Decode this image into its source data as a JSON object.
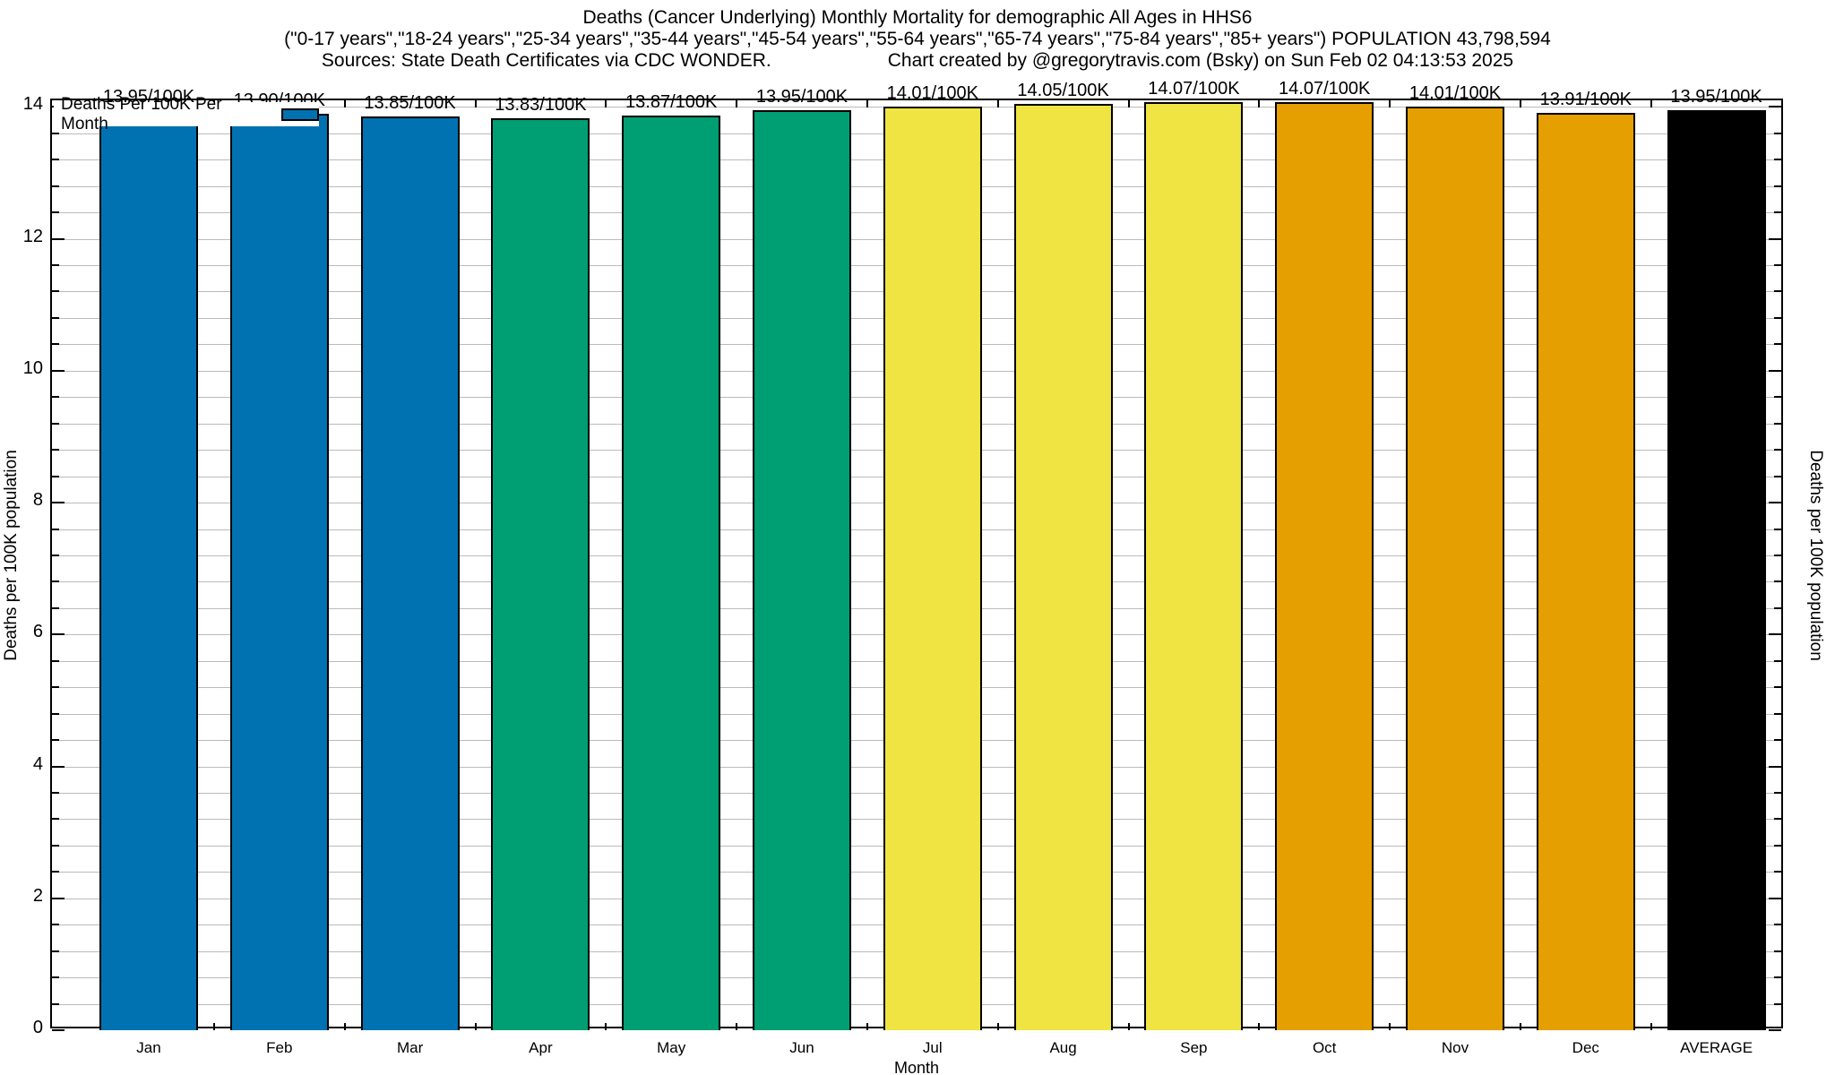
{
  "title": {
    "line1": "Deaths (Cancer Underlying) Monthly Mortality for demographic All Ages in HHS6",
    "line2": "(\"0-17 years\",\"18-24 years\",\"25-34 years\",\"35-44 years\",\"45-54 years\",\"55-64 years\",\"65-74 years\",\"75-84 years\",\"85+ years\") POPULATION 43,798,594",
    "line3_left": "Sources: State Death Certificates via CDC WONDER.",
    "line3_right": "Chart created by @gregorytravis.com (Bsky) on Sun Feb 02 04:13:53 2025"
  },
  "legend": {
    "label": "Deaths Per 100K Per Month",
    "swatch_color": "#0072B2"
  },
  "axes": {
    "xlabel": "Month",
    "ylabel_left": "Deaths per 100K population",
    "ylabel_right": "Deaths per 100K population",
    "ytick_labels": [
      "0",
      "2",
      "4",
      "6",
      "8",
      "10",
      "12",
      "14"
    ]
  },
  "colors": {
    "blue": "#0072B2",
    "green": "#009E73",
    "yellow": "#F0E442",
    "orange": "#E69F00",
    "black": "#000000",
    "gridline": "#bbbbbb"
  },
  "chart_data": {
    "type": "bar",
    "title": "Deaths (Cancer Underlying) Monthly Mortality for demographic All Ages in HHS6",
    "xlabel": "Month",
    "ylabel": "Deaths per 100K population",
    "ylim": [
      0,
      14
    ],
    "ytick_step": 2,
    "minor_grid_step": 0.4,
    "grid": true,
    "legend_position": "top-left",
    "categories": [
      "Jan",
      "Feb",
      "Mar",
      "Apr",
      "May",
      "Jun",
      "Jul",
      "Aug",
      "Sep",
      "Oct",
      "Nov",
      "Dec",
      "AVERAGE"
    ],
    "values": [
      13.95,
      13.9,
      13.85,
      13.83,
      13.87,
      13.95,
      14.01,
      14.05,
      14.07,
      14.07,
      14.01,
      13.91,
      13.95
    ],
    "bar_labels": [
      "13.95/100K",
      "13.90/100K",
      "13.85/100K",
      "13.83/100K",
      "13.87/100K",
      "13.95/100K",
      "14.01/100K",
      "14.05/100K",
      "14.07/100K",
      "14.07/100K",
      "14.01/100K",
      "13.91/100K",
      "13.95/100K"
    ],
    "bar_colors": [
      "#0072B2",
      "#0072B2",
      "#0072B2",
      "#009E73",
      "#009E73",
      "#009E73",
      "#F0E442",
      "#F0E442",
      "#F0E442",
      "#E69F00",
      "#E69F00",
      "#E69F00",
      "#000000"
    ],
    "series": [
      {
        "name": "Deaths Per 100K Per Month",
        "values": [
          13.95,
          13.9,
          13.85,
          13.83,
          13.87,
          13.95,
          14.01,
          14.05,
          14.07,
          14.07,
          14.01,
          13.91,
          13.95
        ]
      }
    ]
  }
}
